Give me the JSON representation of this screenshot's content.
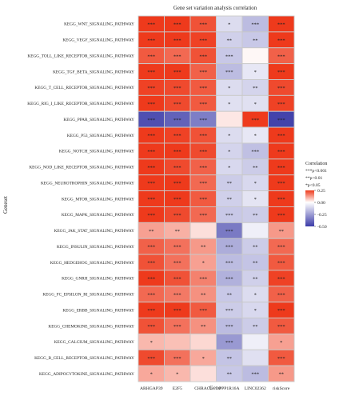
{
  "chart_data": {
    "type": "heatmap",
    "title": "Gene set variation analysis correlation",
    "xlabel": "Gene",
    "ylabel": "Geneset",
    "columns": [
      "ARHGAP39",
      "E2F5",
      "CHRAC1",
      "PPP1R16A",
      "LINC02362",
      "riskScore"
    ],
    "rows": [
      "KEGG_WNT_SIGNALING_PATHWAY",
      "KEGG_VEGF_SIGNALING_PATHWAY",
      "KEGG_TOLL_LIKE_RECEPTOR_SIGNALING_PATHWAY",
      "KEGG_TGF_BETA_SIGNALING_PATHWAY",
      "KEGG_T_CELL_RECEPTOR_SIGNALING_PATHWAY",
      "KEGG_RIG_I_LIKE_RECEPTOR_SIGNALING_PATHWAY",
      "KEGG_PPAR_SIGNALING_PATHWAY",
      "KEGG_P53_SIGNALING_PATHWAY",
      "KEGG_NOTCH_SIGNALING_PATHWAY",
      "KEGG_NOD_LIKE_RECEPTOR_SIGNALING_PATHWAY",
      "KEGG_NEUROTROPHIN_SIGNALING_PATHWAY",
      "KEGG_MTOR_SIGNALING_PATHWAY",
      "KEGG_MAPK_SIGNALING_PATHWAY",
      "KEGG_JAK_STAT_SIGNALING_PATHWAY",
      "KEGG_INSULIN_SIGNALING_PATHWAY",
      "KEGG_HEDGEHOG_SIGNALING_PATHWAY",
      "KEGG_GNRH_SIGNALING_PATHWAY",
      "KEGG_FC_EPSILON_RI_SIGNALING_PATHWAY",
      "KEGG_ERBB_SIGNALING_PATHWAY",
      "KEGG_CHEMOKINE_SIGNALING_PATHWAY",
      "KEGG_CALCIUM_SIGNALING_PATHWAY",
      "KEGG_B_CELL_RECEPTOR_SIGNALING_PATHWAY",
      "KEGG_ADIPOCYTOKINE_SIGNALING_PATHWAY"
    ],
    "values": [
      [
        0.34,
        0.27,
        0.22,
        -0.09,
        -0.17,
        0.3
      ],
      [
        0.31,
        0.26,
        0.24,
        -0.12,
        -0.14,
        0.29
      ],
      [
        0.21,
        0.19,
        0.22,
        -0.14,
        0.01,
        0.2
      ],
      [
        0.27,
        0.25,
        0.2,
        -0.17,
        -0.06,
        0.26
      ],
      [
        0.24,
        0.23,
        0.21,
        -0.09,
        -0.11,
        0.23
      ],
      [
        0.25,
        0.23,
        0.21,
        -0.08,
        -0.08,
        0.24
      ],
      [
        -0.45,
        -0.4,
        -0.33,
        0.03,
        0.3,
        -0.48
      ],
      [
        0.28,
        0.24,
        0.22,
        -0.09,
        -0.06,
        0.27
      ],
      [
        0.33,
        0.27,
        0.23,
        -0.11,
        -0.16,
        0.31
      ],
      [
        0.26,
        0.23,
        0.2,
        -0.1,
        -0.13,
        0.25
      ],
      [
        0.3,
        0.25,
        0.19,
        -0.13,
        -0.1,
        0.28
      ],
      [
        0.29,
        0.25,
        0.21,
        -0.12,
        -0.07,
        0.27
      ],
      [
        0.28,
        0.23,
        0.19,
        -0.14,
        -0.13,
        0.26
      ],
      [
        0.12,
        0.1,
        0.04,
        -0.34,
        -0.04,
        0.13
      ],
      [
        0.2,
        0.18,
        0.13,
        -0.21,
        -0.13,
        0.19
      ],
      [
        0.22,
        0.18,
        0.12,
        -0.17,
        -0.15,
        0.21
      ],
      [
        0.26,
        0.22,
        0.16,
        -0.2,
        -0.12,
        0.24
      ],
      [
        0.19,
        0.17,
        0.14,
        -0.14,
        -0.09,
        0.2
      ],
      [
        0.31,
        0.25,
        0.21,
        -0.13,
        -0.1,
        0.29
      ],
      [
        0.22,
        0.18,
        0.14,
        -0.17,
        -0.13,
        0.21
      ],
      [
        0.09,
        0.08,
        0.05,
        -0.26,
        -0.04,
        0.12
      ],
      [
        0.23,
        0.18,
        0.11,
        -0.15,
        -0.08,
        0.21
      ],
      [
        0.11,
        0.09,
        0.04,
        -0.14,
        -0.17,
        0.13
      ]
    ],
    "significance": [
      [
        "***",
        "***",
        "***",
        "*",
        "***",
        "***"
      ],
      [
        "***",
        "***",
        "***",
        "**",
        "**",
        "***"
      ],
      [
        "***",
        "***",
        "***",
        "***",
        "",
        "***"
      ],
      [
        "***",
        "***",
        "***",
        "***",
        "*",
        "***"
      ],
      [
        "***",
        "***",
        "***",
        "*",
        "**",
        "***"
      ],
      [
        "***",
        "***",
        "***",
        "*",
        "*",
        "***"
      ],
      [
        "***",
        "***",
        "***",
        "",
        "***",
        "***"
      ],
      [
        "***",
        "***",
        "***",
        "*",
        "*",
        "***"
      ],
      [
        "***",
        "***",
        "***",
        "*",
        "***",
        "***"
      ],
      [
        "***",
        "***",
        "***",
        "*",
        "**",
        "***"
      ],
      [
        "***",
        "***",
        "***",
        "**",
        "*",
        "***"
      ],
      [
        "***",
        "***",
        "***",
        "**",
        "*",
        "***"
      ],
      [
        "***",
        "***",
        "***",
        "***",
        "**",
        "***"
      ],
      [
        "**",
        "**",
        "",
        "***",
        "",
        "**"
      ],
      [
        "***",
        "***",
        "**",
        "***",
        "**",
        "***"
      ],
      [
        "***",
        "***",
        "*",
        "***",
        "**",
        "***"
      ],
      [
        "***",
        "***",
        "***",
        "***",
        "**",
        "***"
      ],
      [
        "***",
        "***",
        "**",
        "**",
        "*",
        "***"
      ],
      [
        "***",
        "***",
        "***",
        "***",
        "*",
        "***"
      ],
      [
        "***",
        "***",
        "**",
        "***",
        "**",
        "***"
      ],
      [
        "*",
        "",
        "",
        "***",
        "",
        "*"
      ],
      [
        "***",
        "***",
        "*",
        "**",
        "",
        "***"
      ],
      [
        "*",
        "*",
        "",
        "**",
        "***",
        "**"
      ]
    ],
    "colorbar": {
      "title": "Correlation",
      "min": -0.5,
      "max": 0.25,
      "ticks": [
        0.25,
        0,
        -0.25,
        -0.5
      ],
      "tick_labels": [
        "0.25",
        "0.00",
        "-0.25",
        "-0.50"
      ],
      "colors": {
        "low": "#3b3ba8",
        "mid": "#ffffff",
        "high": "#ee3a1c"
      }
    },
    "significance_legend": [
      "***p<0.001",
      "**p<0.01",
      "*p<0.05"
    ],
    "grid": true
  }
}
